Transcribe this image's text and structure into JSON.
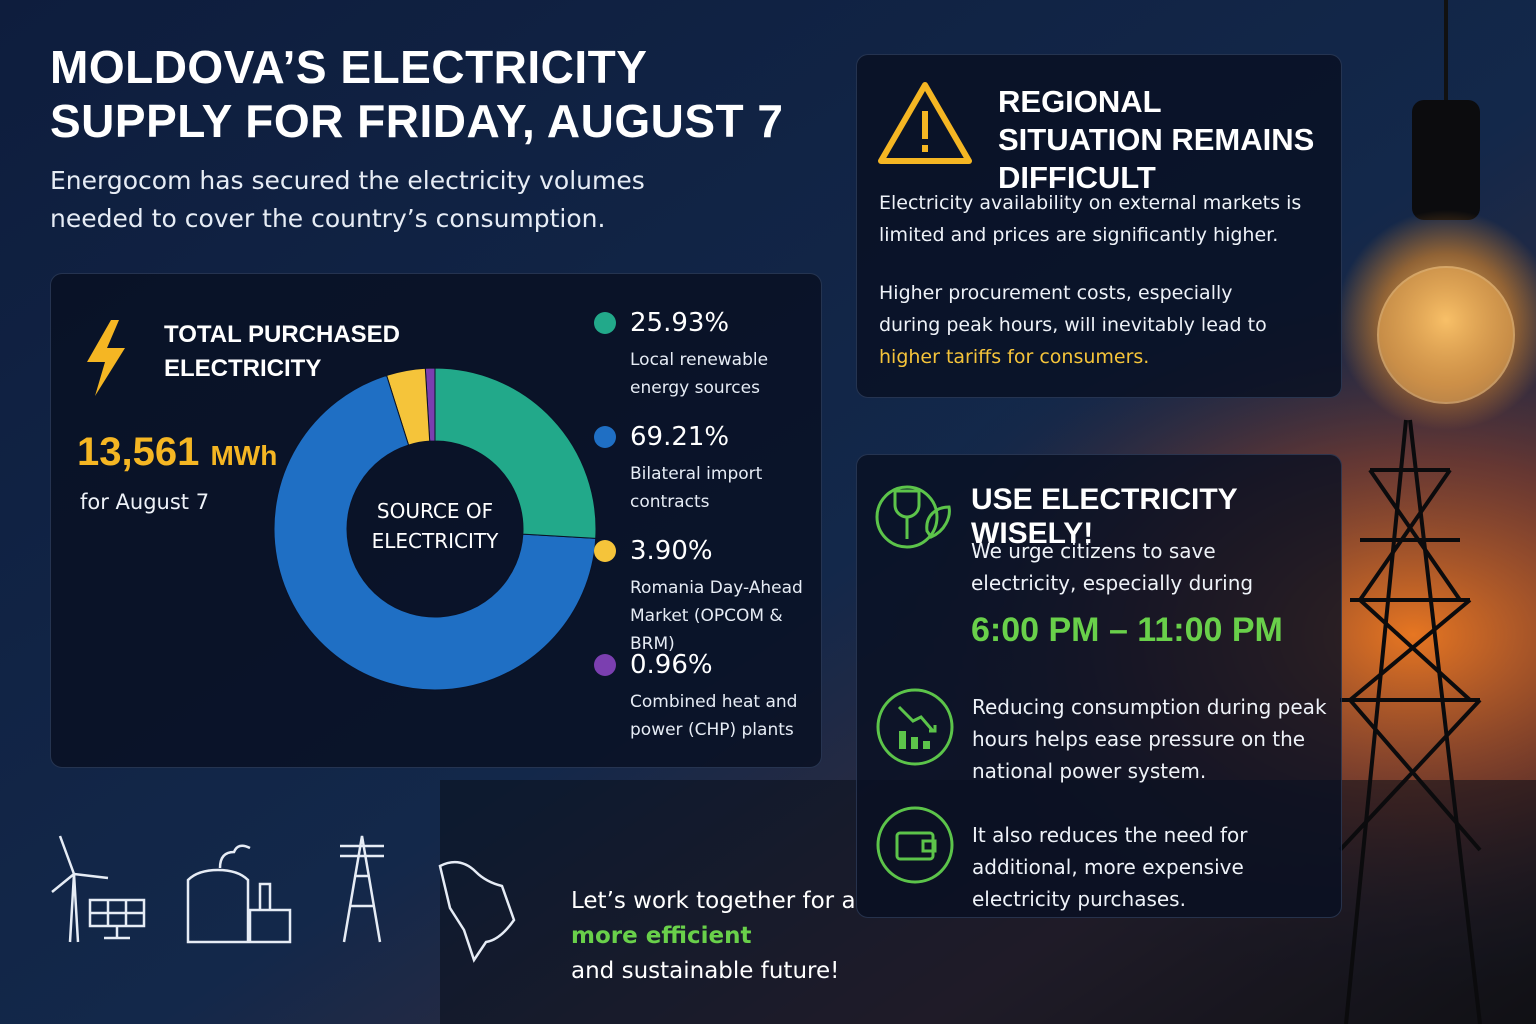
{
  "header": {
    "title": "MOLDOVA’S ELECTRICITY SUPPLY FOR FRIDAY, AUGUST 7",
    "subtitle": "Energocom has secured the electricity volumes needed to cover the country’s consumption."
  },
  "total": {
    "label": "TOTAL PURCHASED ELECTRICITY",
    "value": "13,561",
    "unit": "MWh",
    "note": "for August 7"
  },
  "chart_data": {
    "type": "donut",
    "title": "SOURCE OF ELECTRICITY",
    "series": [
      {
        "name": "Local renewable energy sources",
        "color": "#22a98a",
        "values": [
          25.93
        ],
        "value_labels": [
          "25.93%"
        ]
      },
      {
        "name": "Bilateral import contracts",
        "color": "#1f6fc4",
        "values": [
          69.21
        ],
        "value_labels": [
          "69.21%"
        ]
      },
      {
        "name": "Romania Day-Ahead Market (OPCOM & BRM)",
        "color": "#f5c43a",
        "values": [
          3.9
        ],
        "value_labels": [
          "3.90%"
        ]
      },
      {
        "name": "Combined heat and power (CHP) plants",
        "color": "#7b3fb0",
        "values": [
          0.96
        ],
        "value_labels": [
          "0.96%"
        ]
      }
    ]
  },
  "regional": {
    "title": "REGIONAL SITUATION REMAINS DIFFICULT",
    "p1": "Electricity availability on external markets is limited and prices are significantly higher.",
    "p2_text": "Higher procurement costs, especially during peak hours, will inevitably lead to",
    "p2_highlight": "higher tariffs for consumers."
  },
  "wise": {
    "title": "USE ELECTRICITY WISELY!",
    "text": "We urge citizens to save electricity, especially during",
    "time": "6:00 PM – 11:00 PM",
    "tips": [
      "Reducing consumption during peak hours helps ease pressure on the national power system.",
      "It also reduces the need for additional, more expensive electricity purchases."
    ]
  },
  "footer": {
    "line1": "Let’s work together for a",
    "highlight": "more efficient",
    "line3": "and sustainable future!"
  }
}
